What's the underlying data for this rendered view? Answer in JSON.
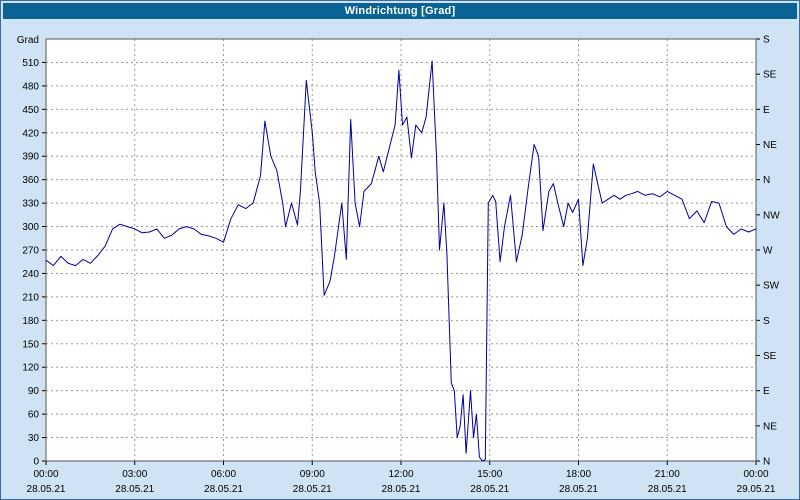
{
  "window": {
    "title": "Windrichtung [Grad]"
  },
  "colors": {
    "titlebar_bg": "#0a6295",
    "titlebar_text": "#ffffff",
    "window_bg": "#cfe3f5",
    "window_border": "#3a6aa5",
    "plot_bg": "#ffffff",
    "plot_border": "#555555",
    "grid": "#999999",
    "tick_text": "#000000",
    "line": "#0000a0"
  },
  "chart_data": {
    "type": "line",
    "title": "Windrichtung [Grad]",
    "ylabel_left": "Grad",
    "ylim": [
      0,
      540
    ],
    "xlim_hours": [
      0,
      24
    ],
    "grid": "dashed",
    "legend": "none",
    "y_left_ticks": [
      0,
      30,
      60,
      90,
      120,
      150,
      180,
      210,
      240,
      270,
      300,
      330,
      360,
      390,
      420,
      450,
      480,
      510
    ],
    "y_right_ticks": [
      {
        "deg": 540,
        "label": "S"
      },
      {
        "deg": 495,
        "label": "SE"
      },
      {
        "deg": 450,
        "label": "E"
      },
      {
        "deg": 405,
        "label": "NE"
      },
      {
        "deg": 360,
        "label": "N"
      },
      {
        "deg": 315,
        "label": "NW"
      },
      {
        "deg": 270,
        "label": "W"
      },
      {
        "deg": 225,
        "label": "SW"
      },
      {
        "deg": 180,
        "label": "S"
      },
      {
        "deg": 135,
        "label": "SE"
      },
      {
        "deg": 90,
        "label": "E"
      },
      {
        "deg": 45,
        "label": "NE"
      },
      {
        "deg": 0,
        "label": "N"
      }
    ],
    "x_ticks": [
      {
        "hour": 0,
        "label": "00:00",
        "date": "28.05.21"
      },
      {
        "hour": 3,
        "label": "03:00",
        "date": "28.05.21"
      },
      {
        "hour": 6,
        "label": "06:00",
        "date": "28.05.21"
      },
      {
        "hour": 9,
        "label": "09:00",
        "date": "28.05.21"
      },
      {
        "hour": 12,
        "label": "12:00",
        "date": "28.05.21"
      },
      {
        "hour": 15,
        "label": "15:00",
        "date": "28.05.21"
      },
      {
        "hour": 18,
        "label": "18:00",
        "date": "28.05.21"
      },
      {
        "hour": 21,
        "label": "21:00",
        "date": "28.05.21"
      },
      {
        "hour": 24,
        "label": "00:00",
        "date": "29.05.21"
      }
    ],
    "series": [
      {
        "name": "Windrichtung",
        "x": [
          0,
          0.25,
          0.5,
          0.75,
          1,
          1.25,
          1.5,
          1.75,
          2,
          2.25,
          2.5,
          2.75,
          3,
          3.25,
          3.5,
          3.75,
          4,
          4.25,
          4.5,
          4.75,
          5,
          5.25,
          5.5,
          5.75,
          6,
          6.25,
          6.5,
          6.75,
          7,
          7.25,
          7.4,
          7.6,
          7.8,
          8,
          8.1,
          8.3,
          8.5,
          8.6,
          8.8,
          9,
          9.1,
          9.25,
          9.4,
          9.6,
          9.75,
          10,
          10.15,
          10.3,
          10.45,
          10.6,
          10.75,
          11,
          11.25,
          11.4,
          11.6,
          11.8,
          11.93,
          12.05,
          12.2,
          12.35,
          12.5,
          12.7,
          12.85,
          13.05,
          13.2,
          13.3,
          13.45,
          13.55,
          13.7,
          13.8,
          13.9,
          14,
          14.1,
          14.2,
          14.35,
          14.45,
          14.55,
          14.65,
          14.75,
          14.85,
          14.95,
          15.1,
          15.2,
          15.35,
          15.5,
          15.7,
          15.9,
          16.1,
          16.3,
          16.5,
          16.65,
          16.8,
          17,
          17.15,
          17.3,
          17.5,
          17.65,
          17.8,
          18,
          18.15,
          18.3,
          18.5,
          18.65,
          18.8,
          19,
          19.2,
          19.4,
          19.6,
          19.8,
          20,
          20.25,
          20.5,
          20.75,
          21,
          21.25,
          21.5,
          21.75,
          22,
          22.25,
          22.5,
          22.75,
          23,
          23.25,
          23.5,
          23.75,
          24
        ],
        "y": [
          257,
          250,
          262,
          253,
          250,
          258,
          253,
          263,
          275,
          297,
          303,
          300,
          297,
          292,
          293,
          297,
          285,
          289,
          297,
          300,
          297,
          290,
          288,
          285,
          280,
          310,
          328,
          323,
          330,
          365,
          435,
          390,
          372,
          330,
          300,
          330,
          302,
          345,
          487,
          420,
          370,
          330,
          212,
          230,
          262,
          330,
          258,
          437,
          330,
          300,
          345,
          355,
          390,
          370,
          400,
          430,
          500,
          430,
          440,
          388,
          430,
          420,
          440,
          512,
          390,
          270,
          330,
          265,
          100,
          90,
          30,
          45,
          85,
          10,
          90,
          30,
          60,
          5,
          0,
          2,
          330,
          340,
          332,
          255,
          300,
          340,
          255,
          290,
          350,
          405,
          390,
          295,
          345,
          355,
          330,
          300,
          330,
          318,
          335,
          250,
          285,
          380,
          355,
          330,
          335,
          340,
          335,
          340,
          342,
          345,
          340,
          342,
          338,
          345,
          340,
          335,
          310,
          320,
          305,
          332,
          330,
          300,
          290,
          297,
          293,
          297
        ]
      }
    ]
  }
}
